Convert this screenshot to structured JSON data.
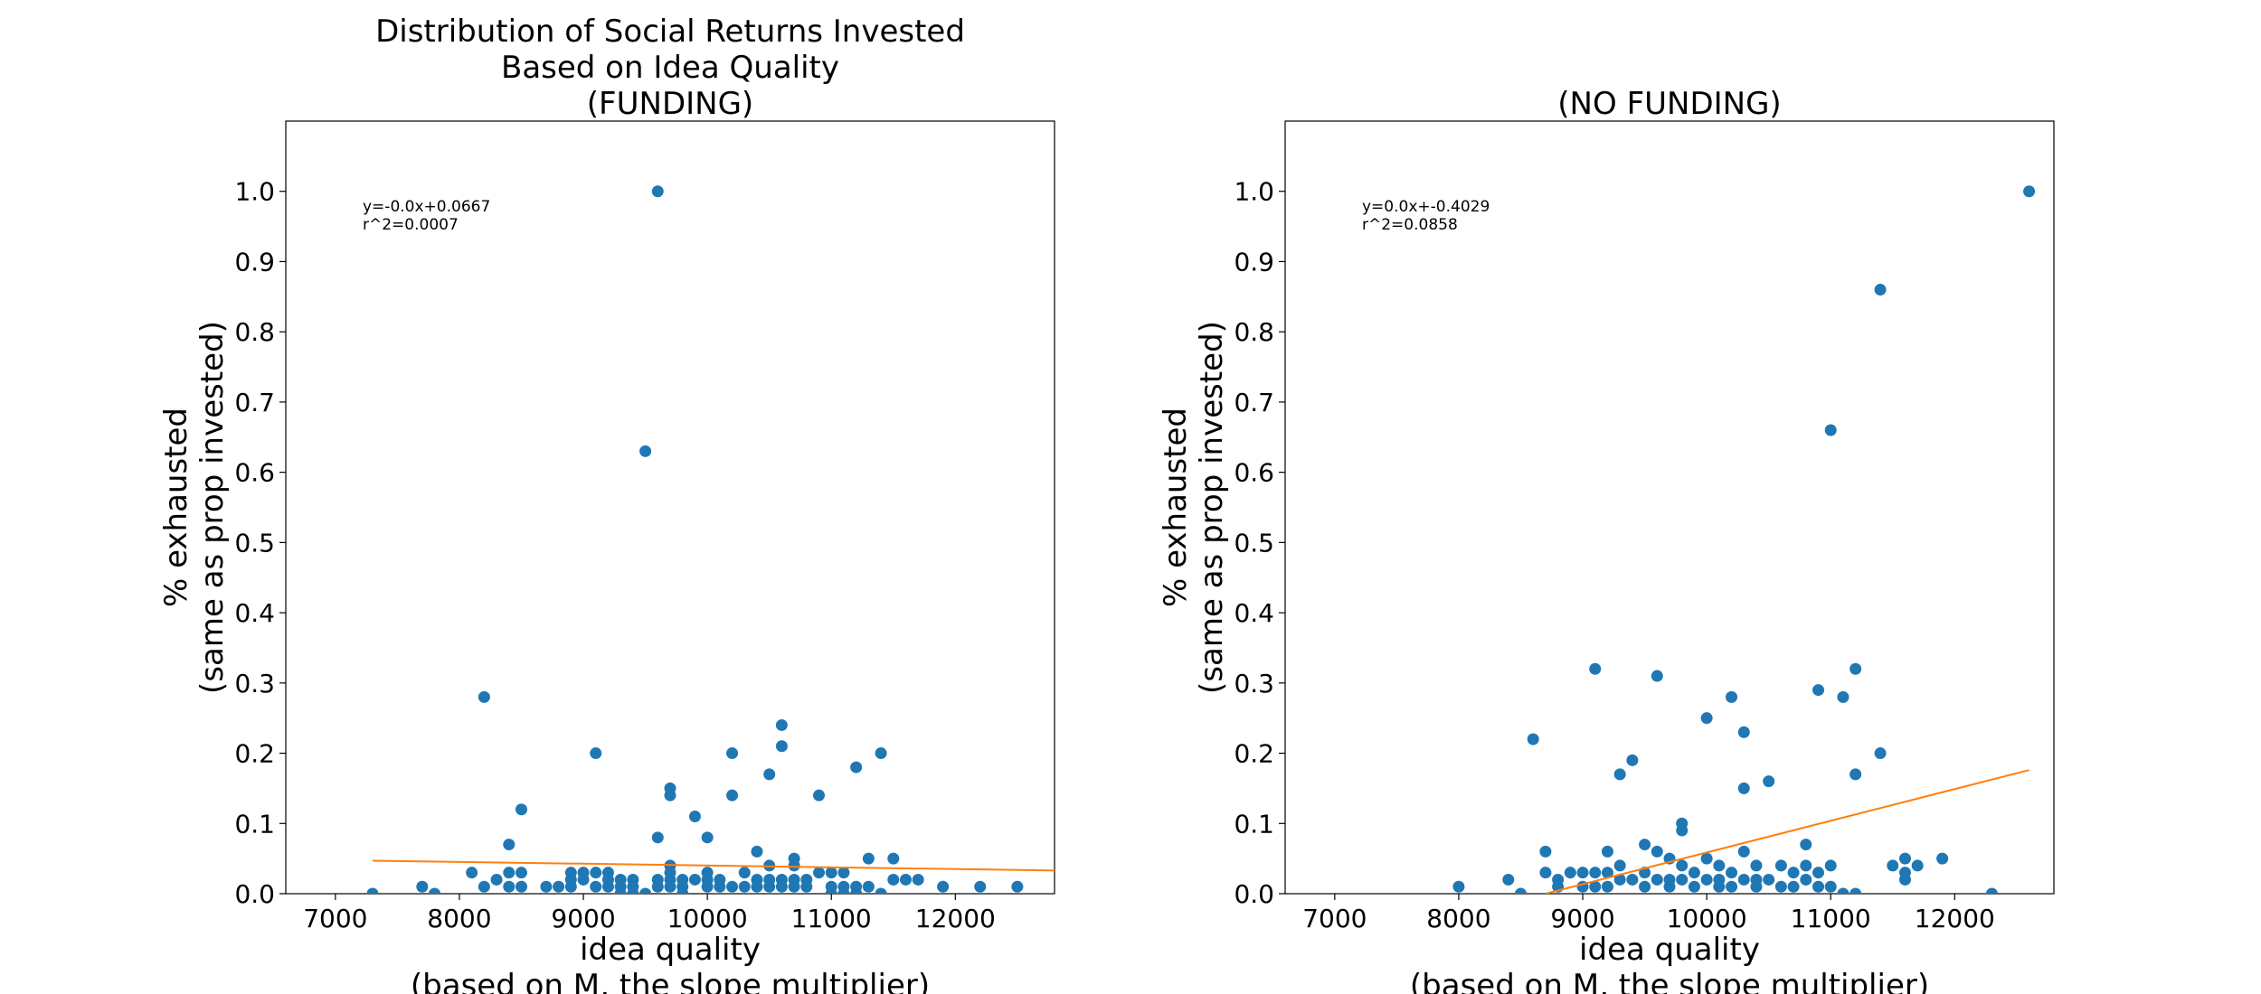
{
  "colors": {
    "points": "#1f77b4",
    "fit_line": "#ff7f0e"
  },
  "chart_data": [
    {
      "type": "scatter",
      "title": [
        "Distribution of Social Returns Invested",
        "Based on Idea Quality",
        "(FUNDING)"
      ],
      "xlabel": [
        "idea quality",
        "(based on M, the slope multiplier)"
      ],
      "ylabel": [
        "% exhausted",
        "(same as prop invested)"
      ],
      "xlim": [
        6600,
        12800
      ],
      "ylim": [
        0,
        1.1
      ],
      "xticks": [
        7000,
        8000,
        9000,
        10000,
        11000,
        12000
      ],
      "yticks": [
        0.0,
        0.1,
        0.2,
        0.3,
        0.4,
        0.5,
        0.6,
        0.7,
        0.8,
        0.9,
        1.0
      ],
      "grid": false,
      "annotation": [
        "y=-0.0x+0.0667",
        "r^2=0.0007"
      ],
      "fit_line": {
        "x": [
          7300,
          12800
        ],
        "y": [
          0.047,
          0.033
        ]
      },
      "points": {
        "x": [
          7300,
          7700,
          7800,
          8100,
          8200,
          8200,
          8300,
          8400,
          8400,
          8400,
          8500,
          8500,
          8500,
          8700,
          8800,
          8900,
          8900,
          8900,
          9000,
          9000,
          9100,
          9100,
          9100,
          9200,
          9200,
          9200,
          9300,
          9300,
          9300,
          9400,
          9400,
          9400,
          9500,
          9500,
          9600,
          9600,
          9600,
          9600,
          9700,
          9700,
          9700,
          9700,
          9700,
          9700,
          9800,
          9800,
          9800,
          9900,
          9900,
          10000,
          10000,
          10000,
          10000,
          10100,
          10100,
          10200,
          10200,
          10200,
          10300,
          10300,
          10400,
          10400,
          10400,
          10500,
          10500,
          10500,
          10500,
          10600,
          10600,
          10600,
          10600,
          10700,
          10700,
          10700,
          10700,
          10800,
          10800,
          10900,
          10900,
          11000,
          11000,
          11000,
          11100,
          11100,
          11100,
          11200,
          11200,
          11200,
          11300,
          11300,
          11400,
          11400,
          11500,
          11500,
          11600,
          11700,
          11900,
          12200,
          12500
        ],
        "y": [
          0.0,
          0.01,
          0.0,
          0.03,
          0.28,
          0.01,
          0.02,
          0.07,
          0.03,
          0.01,
          0.12,
          0.03,
          0.01,
          0.01,
          0.01,
          0.03,
          0.02,
          0.01,
          0.03,
          0.02,
          0.2,
          0.03,
          0.01,
          0.03,
          0.02,
          0.01,
          0.02,
          0.01,
          0.0,
          0.02,
          0.01,
          0.0,
          0.63,
          0.0,
          1.0,
          0.08,
          0.02,
          0.01,
          0.15,
          0.14,
          0.04,
          0.03,
          0.02,
          0.01,
          0.02,
          0.01,
          0.0,
          0.11,
          0.02,
          0.08,
          0.03,
          0.02,
          0.01,
          0.02,
          0.01,
          0.2,
          0.14,
          0.01,
          0.03,
          0.01,
          0.06,
          0.02,
          0.01,
          0.17,
          0.04,
          0.02,
          0.01,
          0.24,
          0.21,
          0.02,
          0.01,
          0.05,
          0.04,
          0.02,
          0.01,
          0.02,
          0.01,
          0.14,
          0.03,
          0.03,
          0.01,
          0.0,
          0.03,
          0.01,
          0.0,
          0.18,
          0.01,
          0.0,
          0.05,
          0.01,
          0.2,
          0.0,
          0.05,
          0.02,
          0.02,
          0.02,
          0.01,
          0.01,
          0.01
        ]
      }
    },
    {
      "type": "scatter",
      "title": [
        "(NO FUNDING)"
      ],
      "xlabel": [
        "idea quality",
        "(based on M, the slope multiplier)"
      ],
      "ylabel": [
        "% exhausted",
        "(same as prop invested)"
      ],
      "xlim": [
        6600,
        12800
      ],
      "ylim": [
        0,
        1.1
      ],
      "xticks": [
        7000,
        8000,
        9000,
        10000,
        11000,
        12000
      ],
      "yticks": [
        0.0,
        0.1,
        0.2,
        0.3,
        0.4,
        0.5,
        0.6,
        0.7,
        0.8,
        0.9,
        1.0
      ],
      "grid": false,
      "annotation": [
        "y=0.0x+-0.4029",
        "r^2=0.0858"
      ],
      "fit_line": {
        "x": [
          8700,
          12600
        ],
        "y": [
          0.0,
          0.176
        ]
      },
      "points": {
        "x": [
          8000,
          8400,
          8500,
          8600,
          8700,
          8700,
          8800,
          8800,
          8900,
          9000,
          9000,
          9100,
          9100,
          9100,
          9200,
          9200,
          9200,
          9300,
          9300,
          9300,
          9400,
          9400,
          9500,
          9500,
          9500,
          9600,
          9600,
          9600,
          9700,
          9700,
          9700,
          9800,
          9800,
          9800,
          9800,
          9900,
          9900,
          10000,
          10000,
          10000,
          10100,
          10100,
          10100,
          10200,
          10200,
          10200,
          10300,
          10300,
          10300,
          10300,
          10400,
          10400,
          10400,
          10500,
          10500,
          10600,
          10600,
          10700,
          10700,
          10800,
          10800,
          10800,
          10900,
          10900,
          10900,
          11000,
          11000,
          11000,
          11100,
          11100,
          11200,
          11200,
          11200,
          11400,
          11400,
          11500,
          11600,
          11600,
          11600,
          11700,
          11900,
          12300,
          12600
        ],
        "y": [
          0.01,
          0.02,
          0.0,
          0.22,
          0.06,
          0.03,
          0.02,
          0.01,
          0.03,
          0.03,
          0.01,
          0.32,
          0.03,
          0.01,
          0.06,
          0.03,
          0.01,
          0.17,
          0.04,
          0.02,
          0.19,
          0.02,
          0.07,
          0.03,
          0.01,
          0.31,
          0.06,
          0.02,
          0.05,
          0.02,
          0.01,
          0.1,
          0.09,
          0.04,
          0.02,
          0.03,
          0.01,
          0.25,
          0.05,
          0.02,
          0.04,
          0.02,
          0.01,
          0.28,
          0.03,
          0.01,
          0.23,
          0.15,
          0.06,
          0.02,
          0.04,
          0.02,
          0.01,
          0.16,
          0.02,
          0.04,
          0.01,
          0.03,
          0.01,
          0.07,
          0.04,
          0.02,
          0.29,
          0.03,
          0.01,
          0.66,
          0.04,
          0.01,
          0.28,
          0.0,
          0.32,
          0.17,
          0.0,
          0.86,
          0.2,
          0.04,
          0.05,
          0.03,
          0.02,
          0.04,
          0.05,
          0.0,
          1.0
        ]
      }
    }
  ]
}
